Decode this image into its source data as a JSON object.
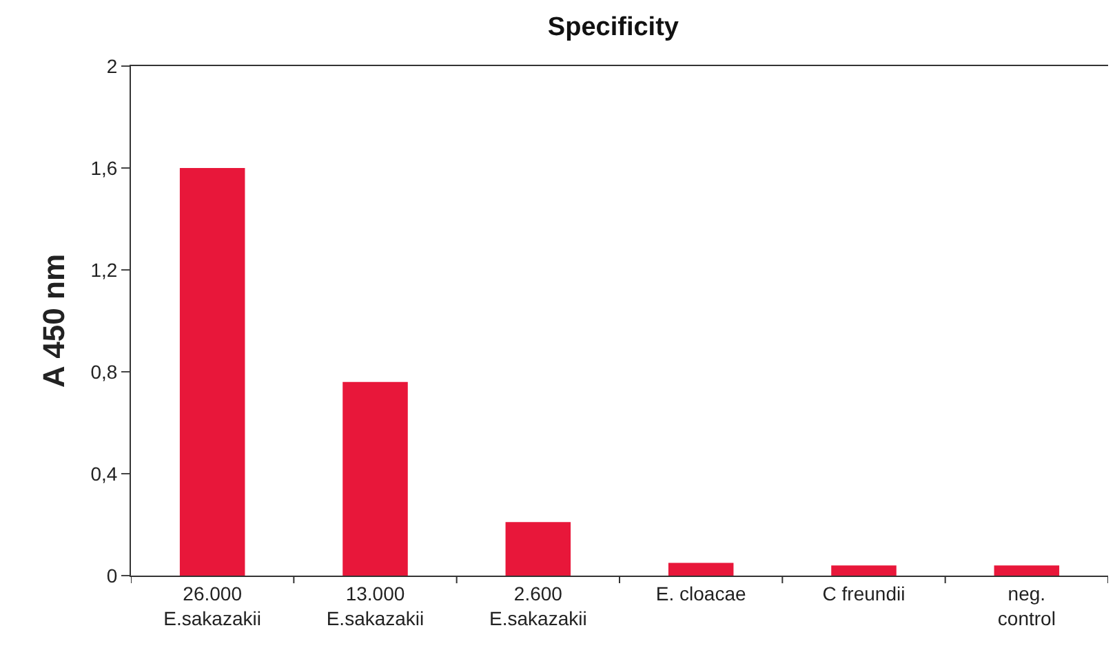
{
  "chart_data": {
    "type": "bar",
    "title": "Specificity",
    "ylabel": "A 450 nm",
    "categories": [
      "26.000\nE.sakazakii",
      "13.000\nE.sakazakii",
      "2.600\nE.sakazakii",
      "E. cloacae",
      "C freundii",
      "neg.\ncontrol"
    ],
    "values": [
      1.6,
      0.76,
      0.21,
      0.05,
      0.04,
      0.04
    ],
    "color": "#e8173a",
    "ylim": [
      0,
      2
    ],
    "yticks": [
      0,
      {
        "value": 0.4,
        "label": "0,4"
      },
      {
        "value": 0.8,
        "label": "0,8"
      },
      {
        "value": 1.2,
        "label": "1,2"
      },
      {
        "value": 1.6,
        "label": "1,6"
      },
      2
    ],
    "grid": false
  }
}
